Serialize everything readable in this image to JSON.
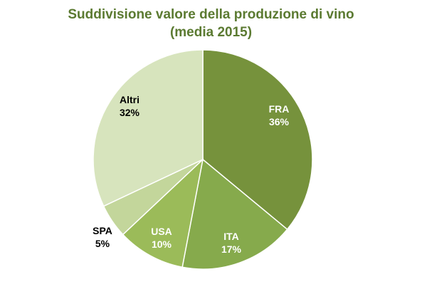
{
  "chart_data": {
    "type": "pie",
    "title": "Suddivisione  valore della produzione di vino",
    "subtitle": "(media 2015)",
    "slices": [
      {
        "label": "FRA",
        "value": 36,
        "display": "36%",
        "color": "#76923c",
        "text_color": "#ffffff"
      },
      {
        "label": "ITA",
        "value": 17,
        "display": "17%",
        "color": "#86aa4c",
        "text_color": "#ffffff"
      },
      {
        "label": "USA",
        "value": 10,
        "display": "10%",
        "color": "#9bbb59",
        "text_color": "#ffffff"
      },
      {
        "label": "SPA",
        "value": 5,
        "display": "5%",
        "color": "#c3d69b",
        "text_color": "#000000"
      },
      {
        "label": "Altri",
        "value": 32,
        "display": "32%",
        "color": "#d7e4bd",
        "text_color": "#000000"
      }
    ],
    "legend": false,
    "start_angle_deg": 0,
    "direction": "clockwise"
  },
  "colors": {
    "title": "#5b7a31",
    "slice_border": "#ffffff"
  }
}
